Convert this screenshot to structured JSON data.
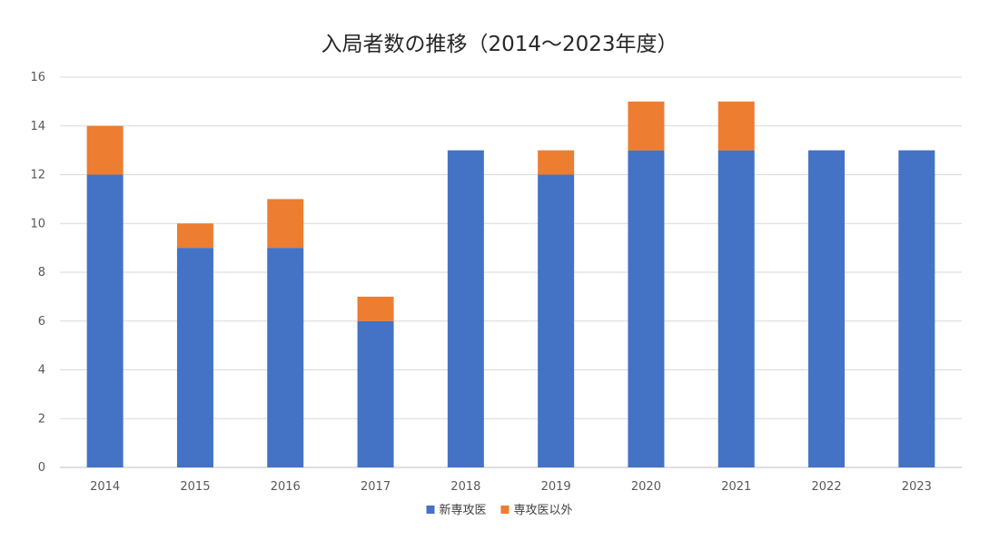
{
  "chart_data": {
    "type": "bar",
    "stacked": true,
    "title": "入局者数の推移（2014～2023年度）",
    "xlabel": "",
    "ylabel": "",
    "categories": [
      "2014",
      "2015",
      "2016",
      "2017",
      "2018",
      "2019",
      "2020",
      "2021",
      "2022",
      "2023"
    ],
    "series": [
      {
        "name": "新専攻医",
        "color": "#4472c4",
        "values": [
          12,
          9,
          9,
          6,
          13,
          12,
          13,
          13,
          13,
          13
        ]
      },
      {
        "name": "専攻医以外",
        "color": "#ed7d31",
        "values": [
          2,
          1,
          2,
          1,
          0,
          1,
          2,
          2,
          0,
          0
        ]
      }
    ],
    "ylim": [
      0,
      16
    ],
    "yticks": [
      0,
      2,
      4,
      6,
      8,
      10,
      12,
      14,
      16
    ],
    "grid": true,
    "legend_position": "bottom"
  }
}
